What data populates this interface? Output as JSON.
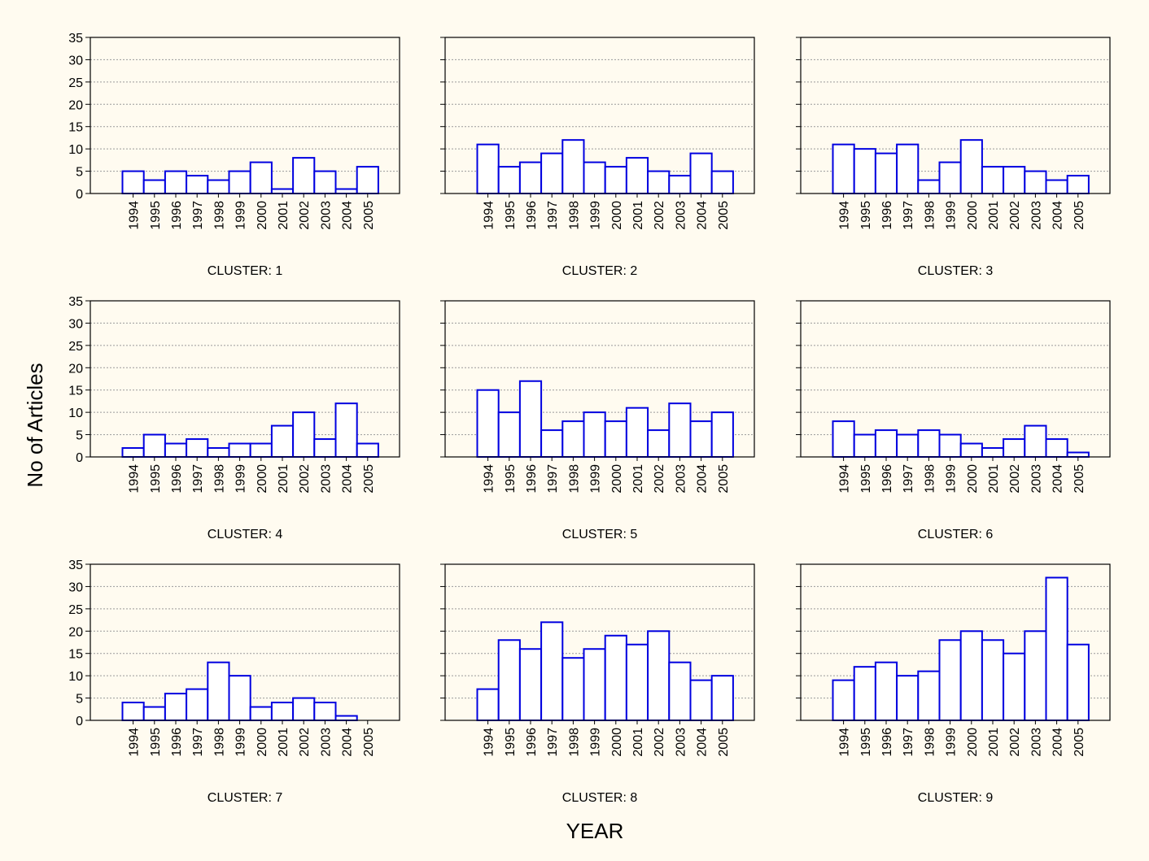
{
  "figure": {
    "ylabel": "No of Articles",
    "xlabel": "YEAR",
    "background": "#fffbf0",
    "bar_stroke": "#0000e0",
    "grid_color": "#9a9a9a"
  },
  "chart_data": [
    {
      "type": "bar",
      "title": "CLUSTER: 1",
      "categories": [
        "1994",
        "1995",
        "1996",
        "1997",
        "1998",
        "1999",
        "2000",
        "2001",
        "2002",
        "2003",
        "2004",
        "2005"
      ],
      "values": [
        5,
        3,
        5,
        4,
        3,
        5,
        7,
        1,
        8,
        5,
        1,
        6
      ],
      "ylim": [
        0,
        35
      ],
      "yticks": [
        "0",
        "5",
        "10",
        "15",
        "20",
        "25",
        "30",
        "35"
      ],
      "grid": true
    },
    {
      "type": "bar",
      "title": "CLUSTER: 2",
      "categories": [
        "1994",
        "1995",
        "1996",
        "1997",
        "1998",
        "1999",
        "2000",
        "2001",
        "2002",
        "2003",
        "2004",
        "2005"
      ],
      "values": [
        11,
        6,
        7,
        9,
        12,
        7,
        6,
        8,
        5,
        4,
        9,
        5
      ],
      "ylim": [
        0,
        35
      ],
      "grid": true
    },
    {
      "type": "bar",
      "title": "CLUSTER: 3",
      "categories": [
        "1994",
        "1995",
        "1996",
        "1997",
        "1998",
        "1999",
        "2000",
        "2001",
        "2002",
        "2003",
        "2004",
        "2005"
      ],
      "values": [
        11,
        10,
        9,
        11,
        3,
        7,
        12,
        6,
        6,
        5,
        3,
        4
      ],
      "ylim": [
        0,
        35
      ],
      "grid": true
    },
    {
      "type": "bar",
      "title": "CLUSTER: 4",
      "categories": [
        "1994",
        "1995",
        "1996",
        "1997",
        "1998",
        "1999",
        "2000",
        "2001",
        "2002",
        "2003",
        "2004",
        "2005"
      ],
      "values": [
        2,
        5,
        3,
        4,
        2,
        3,
        3,
        7,
        10,
        4,
        12,
        3
      ],
      "ylim": [
        0,
        35
      ],
      "yticks": [
        "0",
        "5",
        "10",
        "15",
        "20",
        "25",
        "30",
        "35"
      ],
      "grid": true
    },
    {
      "type": "bar",
      "title": "CLUSTER: 5",
      "categories": [
        "1994",
        "1995",
        "1996",
        "1997",
        "1998",
        "1999",
        "2000",
        "2001",
        "2002",
        "2003",
        "2004",
        "2005"
      ],
      "values": [
        15,
        10,
        17,
        6,
        8,
        10,
        8,
        11,
        6,
        12,
        8,
        10
      ],
      "ylim": [
        0,
        35
      ],
      "grid": true
    },
    {
      "type": "bar",
      "title": "CLUSTER: 6",
      "categories": [
        "1994",
        "1995",
        "1996",
        "1997",
        "1998",
        "1999",
        "2000",
        "2001",
        "2002",
        "2003",
        "2004",
        "2005"
      ],
      "values": [
        8,
        5,
        6,
        5,
        6,
        5,
        3,
        2,
        4,
        7,
        4,
        1
      ],
      "ylim": [
        0,
        35
      ],
      "grid": true
    },
    {
      "type": "bar",
      "title": "CLUSTER: 7",
      "categories": [
        "1994",
        "1995",
        "1996",
        "1997",
        "1998",
        "1999",
        "2000",
        "2001",
        "2002",
        "2003",
        "2004",
        "2005"
      ],
      "values": [
        4,
        3,
        6,
        7,
        13,
        10,
        3,
        4,
        5,
        4,
        1,
        0
      ],
      "ylim": [
        0,
        35
      ],
      "yticks": [
        "0",
        "5",
        "10",
        "15",
        "20",
        "25",
        "30",
        "35"
      ],
      "grid": true
    },
    {
      "type": "bar",
      "title": "CLUSTER: 8",
      "categories": [
        "1994",
        "1995",
        "1996",
        "1997",
        "1998",
        "1999",
        "2000",
        "2001",
        "2002",
        "2003",
        "2004",
        "2005"
      ],
      "values": [
        7,
        18,
        16,
        22,
        14,
        16,
        19,
        17,
        20,
        13,
        9,
        10
      ],
      "ylim": [
        0,
        35
      ],
      "grid": true
    },
    {
      "type": "bar",
      "title": "CLUSTER: 9",
      "categories": [
        "1994",
        "1995",
        "1996",
        "1997",
        "1998",
        "1999",
        "2000",
        "2001",
        "2002",
        "2003",
        "2004",
        "2005"
      ],
      "values": [
        9,
        12,
        13,
        10,
        11,
        18,
        20,
        18,
        15,
        20,
        32,
        17
      ],
      "ylim": [
        0,
        35
      ],
      "grid": true
    }
  ]
}
